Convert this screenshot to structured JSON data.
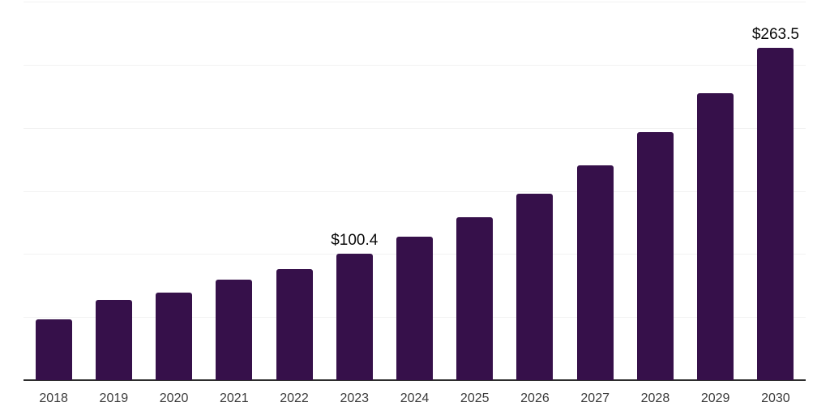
{
  "chart": {
    "background": "#ffffff",
    "bar_color": "#36104a",
    "grid_color": "#f2f2f2",
    "axis_line_color": "#2d2d2d",
    "tick_label_color": "#3b3b3b",
    "data_label_color": "#0a0a0a"
  },
  "chart_data": {
    "type": "bar",
    "categories": [
      "2018",
      "2019",
      "2020",
      "2021",
      "2022",
      "2023",
      "2024",
      "2025",
      "2026",
      "2027",
      "2028",
      "2029",
      "2030"
    ],
    "values": [
      48.3,
      63.7,
      69.2,
      79.6,
      88.3,
      100.4,
      114.0,
      129.4,
      147.7,
      170.1,
      196.4,
      227.4,
      263.5
    ],
    "bar_labels": [
      "",
      "",
      "",
      "",
      "",
      "$100.4",
      "",
      "",
      "",
      "",
      "",
      "",
      "$263.5"
    ],
    "currency_prefix": "$",
    "ylim": [
      0,
      300
    ],
    "y_gridline_step": 50,
    "grid": true,
    "legend": false,
    "y_axis_tick_labels_visible": false,
    "x_axis_line_visible": true
  }
}
